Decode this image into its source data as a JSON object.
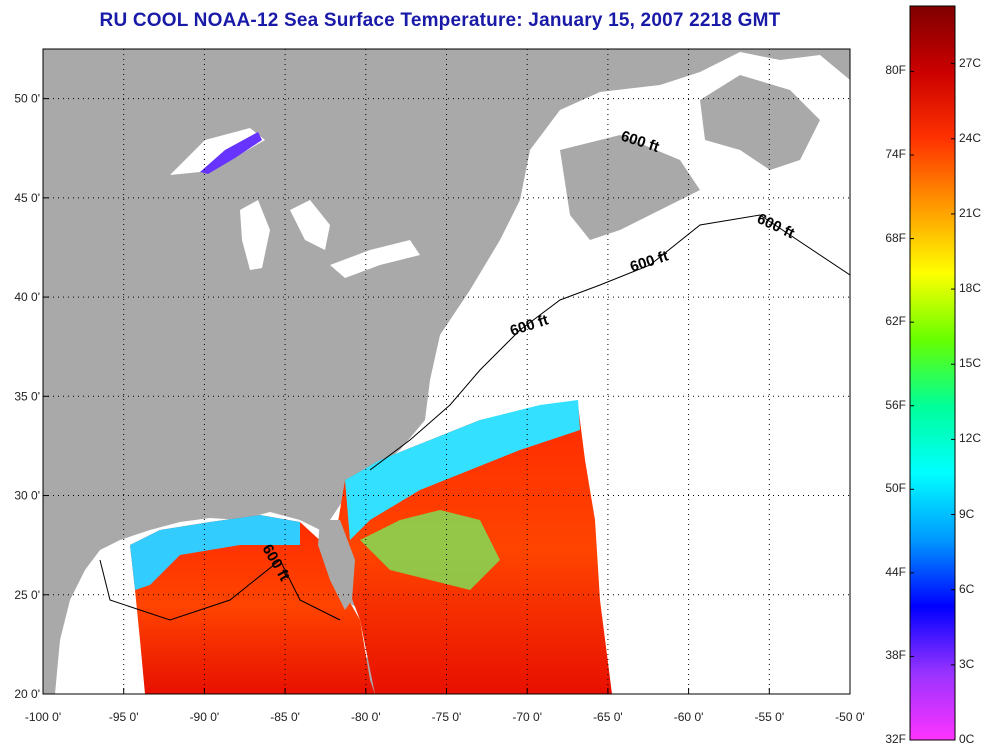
{
  "title": "RU COOL  NOAA-12  Sea Surface Temperature:  January 15, 2007 2218 GMT",
  "map": {
    "lon_range": [
      -100,
      -50
    ],
    "lat_range": [
      20,
      52.5
    ],
    "lon_ticks": [
      "-100 0'",
      "-95 0'",
      "-90 0'",
      "-85 0'",
      "-80 0'",
      "-75 0'",
      "-70 0'",
      "-65 0'",
      "-60 0'",
      "-55 0'",
      "-50 0'"
    ],
    "lat_ticks": [
      "20 0'",
      "25 0'",
      "30 0'",
      "35 0'",
      "40 0'",
      "45 0'",
      "50 0'"
    ],
    "grid": "dotted",
    "land_color": "#a9a9a9",
    "no_data_color": "#ffffff",
    "contour_labels": [
      "600 ft",
      "600 ft",
      "600 ft",
      "600 ft",
      "600 ft"
    ]
  },
  "colorbar": {
    "fahrenheit_labels": [
      "80F",
      "74F",
      "68F",
      "62F",
      "56F",
      "50F",
      "44F",
      "38F",
      "32F"
    ],
    "celsius_labels": [
      "27C",
      "24C",
      "21C",
      "18C",
      "15C",
      "12C",
      "9C",
      "6C",
      "3C",
      "0C"
    ],
    "colors": [
      "#ff33ff",
      "#9933ff",
      "#0000ff",
      "#0099ff",
      "#00ffff",
      "#00ff99",
      "#66ff00",
      "#ffff00",
      "#ff9900",
      "#ff3300",
      "#cc0000",
      "#800000"
    ]
  }
}
